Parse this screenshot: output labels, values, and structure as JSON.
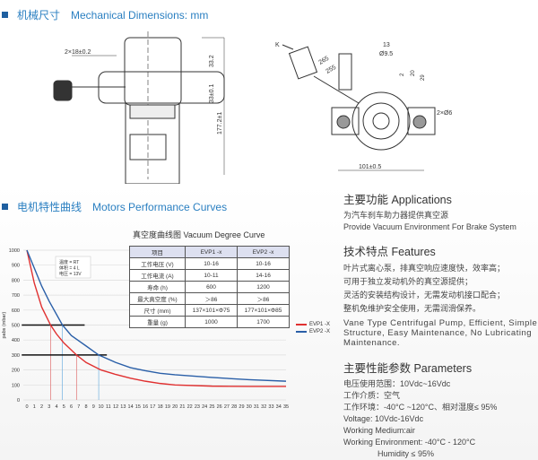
{
  "mech": {
    "title_cn": "机械尺寸",
    "title_en": "Mechanical Dimensions: mm",
    "dims": {
      "width_lugs": "2×18±0.2",
      "h1": "33.2",
      "h2": "33±0.1",
      "total": "177.2±1",
      "k": "K",
      "l1": "265",
      "l2": "255",
      "d13": "13",
      "d95": "Ø9.5",
      "d20": "20",
      "d2": "2",
      "d29": "29",
      "holes": "2×Ø6",
      "width": "101±0.5"
    }
  },
  "perf": {
    "title_cn": "电机特性曲线",
    "title_en": "Motors Performance Curves"
  },
  "accent": "#2a7fc1",
  "chart_data": {
    "type": "line",
    "title": "真空度曲线图  Vacuum Degree Curve",
    "ylabel": "pabs (mbar)",
    "xlim": [
      0,
      35
    ],
    "ylim": [
      0,
      1000
    ],
    "xticks": [
      0,
      1,
      2,
      3,
      4,
      5,
      6,
      7,
      8,
      9,
      10,
      11,
      12,
      13,
      14,
      15,
      16,
      17,
      18,
      19,
      20,
      21,
      22,
      23,
      24,
      25,
      26,
      27,
      28,
      29,
      30,
      31,
      32,
      33,
      34,
      35
    ],
    "yticks": [
      0,
      100,
      200,
      300,
      400,
      500,
      600,
      700,
      800,
      900,
      1000
    ],
    "grid": true,
    "legend": "right",
    "conditions": [
      "温度 = RT",
      "体积 = 4 L",
      "电压 = 13V"
    ],
    "series": [
      {
        "name": "EVP1 -X",
        "color": "#e03030",
        "x": [
          0,
          1,
          2,
          3.2,
          4,
          5,
          6.7,
          8,
          10,
          12,
          14,
          16,
          18,
          20,
          25,
          30,
          35
        ],
        "y": [
          1000,
          780,
          620,
          500,
          440,
          380,
          300,
          250,
          200,
          170,
          145,
          125,
          110,
          100,
          92,
          90,
          90
        ]
      },
      {
        "name": "EVP2 -X",
        "color": "#2a5fa8",
        "x": [
          0,
          1,
          2,
          3,
          4.8,
          6,
          8,
          9.7,
          12,
          14,
          16,
          18,
          20,
          25,
          30,
          35
        ],
        "y": [
          1000,
          880,
          760,
          660,
          500,
          430,
          360,
          300,
          250,
          215,
          195,
          178,
          168,
          150,
          135,
          125
        ]
      }
    ],
    "reference_lines": {
      "horizontal": [
        500,
        300
      ],
      "red_vertical": [
        3.2,
        6.7
      ],
      "blue_vertical": [
        4.8,
        9.7
      ]
    },
    "table": [
      [
        "项目",
        "EVP1 -x",
        "EVP2 -x"
      ],
      [
        "工作电压 (V)",
        "10-16",
        "10-16"
      ],
      [
        "工作电流 (A)",
        "10-11",
        "14-16"
      ],
      [
        "寿命 (h)",
        "600",
        "1200"
      ],
      [
        "最大真空度 (%)",
        "＞86",
        "＞86"
      ],
      [
        "尺寸 (mm)",
        "137×101×Φ75",
        "177×101×Φ85"
      ],
      [
        "重量 (g)",
        "1000",
        "1700"
      ]
    ]
  },
  "right": {
    "app_title": "主要功能  Applications",
    "app_lines": [
      "为汽车刹车助力器提供真空源",
      "Provide Vacuum Environment For Brake System"
    ],
    "feat_title": "技术特点 Features",
    "feat_lines": [
      "叶片式离心泵，排真空响应速度快，效率高；",
      "可用于独立发动机外的真空源提供；",
      "灵活的安装结构设计，无需发动机接口配合；",
      "整机免维护安全使用，无需润滑保养。"
    ],
    "feat_en": "Vane Type Centrifugal Pump, Efficient, Simple Structure, Easy Maintenance, No Lubricating Maintenance.",
    "param_title": "主要性能参数 Parameters",
    "param_lines": [
      "电压使用范围：10Vdc~16Vdc",
      "工作介质：空气",
      "工作环境：-40°C ~120°C、相对湿度≤ 95%",
      "Voltage: 10Vdc-16Vdc",
      "Working Medium:air",
      "Working Environment: -40°C - 120°C",
      "Humidity ≤ 95%"
    ]
  }
}
